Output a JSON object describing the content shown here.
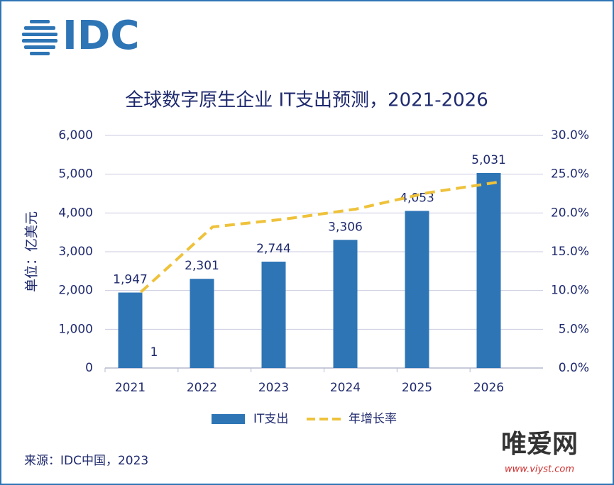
{
  "logo": "IDC",
  "chart_data": {
    "type": "bar",
    "title": "全球数字原生企业 IT支出预测，2021-2026",
    "y_label": "单位：亿美元",
    "categories": [
      "2021",
      "2022",
      "2023",
      "2024",
      "2025",
      "2026"
    ],
    "series": [
      {
        "name": "IT支出",
        "color": "#2e75b6",
        "values": [
          1947,
          2301,
          2744,
          3306,
          4053,
          5031
        ],
        "value_labels": [
          "1,947",
          "2,301",
          "2,744",
          "3,306",
          "4,053",
          "5,031"
        ]
      },
      {
        "name": "年增长率",
        "color": "#eec23a",
        "axis": "y2",
        "dashed": true,
        "values": [
          9.8,
          18.2,
          19.2,
          20.5,
          22.6,
          24.0
        ]
      }
    ],
    "annotation": "1",
    "ylim": [
      0,
      6000
    ],
    "yticks": [
      0,
      {
        "value": 1000,
        "label": "1,000"
      },
      {
        "value": 2000,
        "label": "2,000"
      },
      {
        "value": 3000,
        "label": "3,000"
      },
      {
        "value": 4000,
        "label": "4,000"
      },
      {
        "value": 5000,
        "label": "5,000"
      },
      {
        "value": 6000,
        "label": "6,000"
      }
    ],
    "y2lim": [
      0,
      30
    ],
    "y2ticks": [
      {
        "value": 0,
        "label": "0.0%"
      },
      {
        "value": 5,
        "label": "5.0%"
      },
      {
        "value": 10,
        "label": "10.0%"
      },
      {
        "value": 15,
        "label": "15.0%"
      },
      {
        "value": 20,
        "label": "20.0%"
      },
      {
        "value": 25,
        "label": "25.0%"
      },
      {
        "value": 30,
        "label": "30.0%"
      }
    ],
    "grid": true,
    "legend": "bottom"
  },
  "source": "来源：IDC中国，2023",
  "watermark": {
    "name": "唯爱网",
    "url": "www.viyst.com"
  }
}
